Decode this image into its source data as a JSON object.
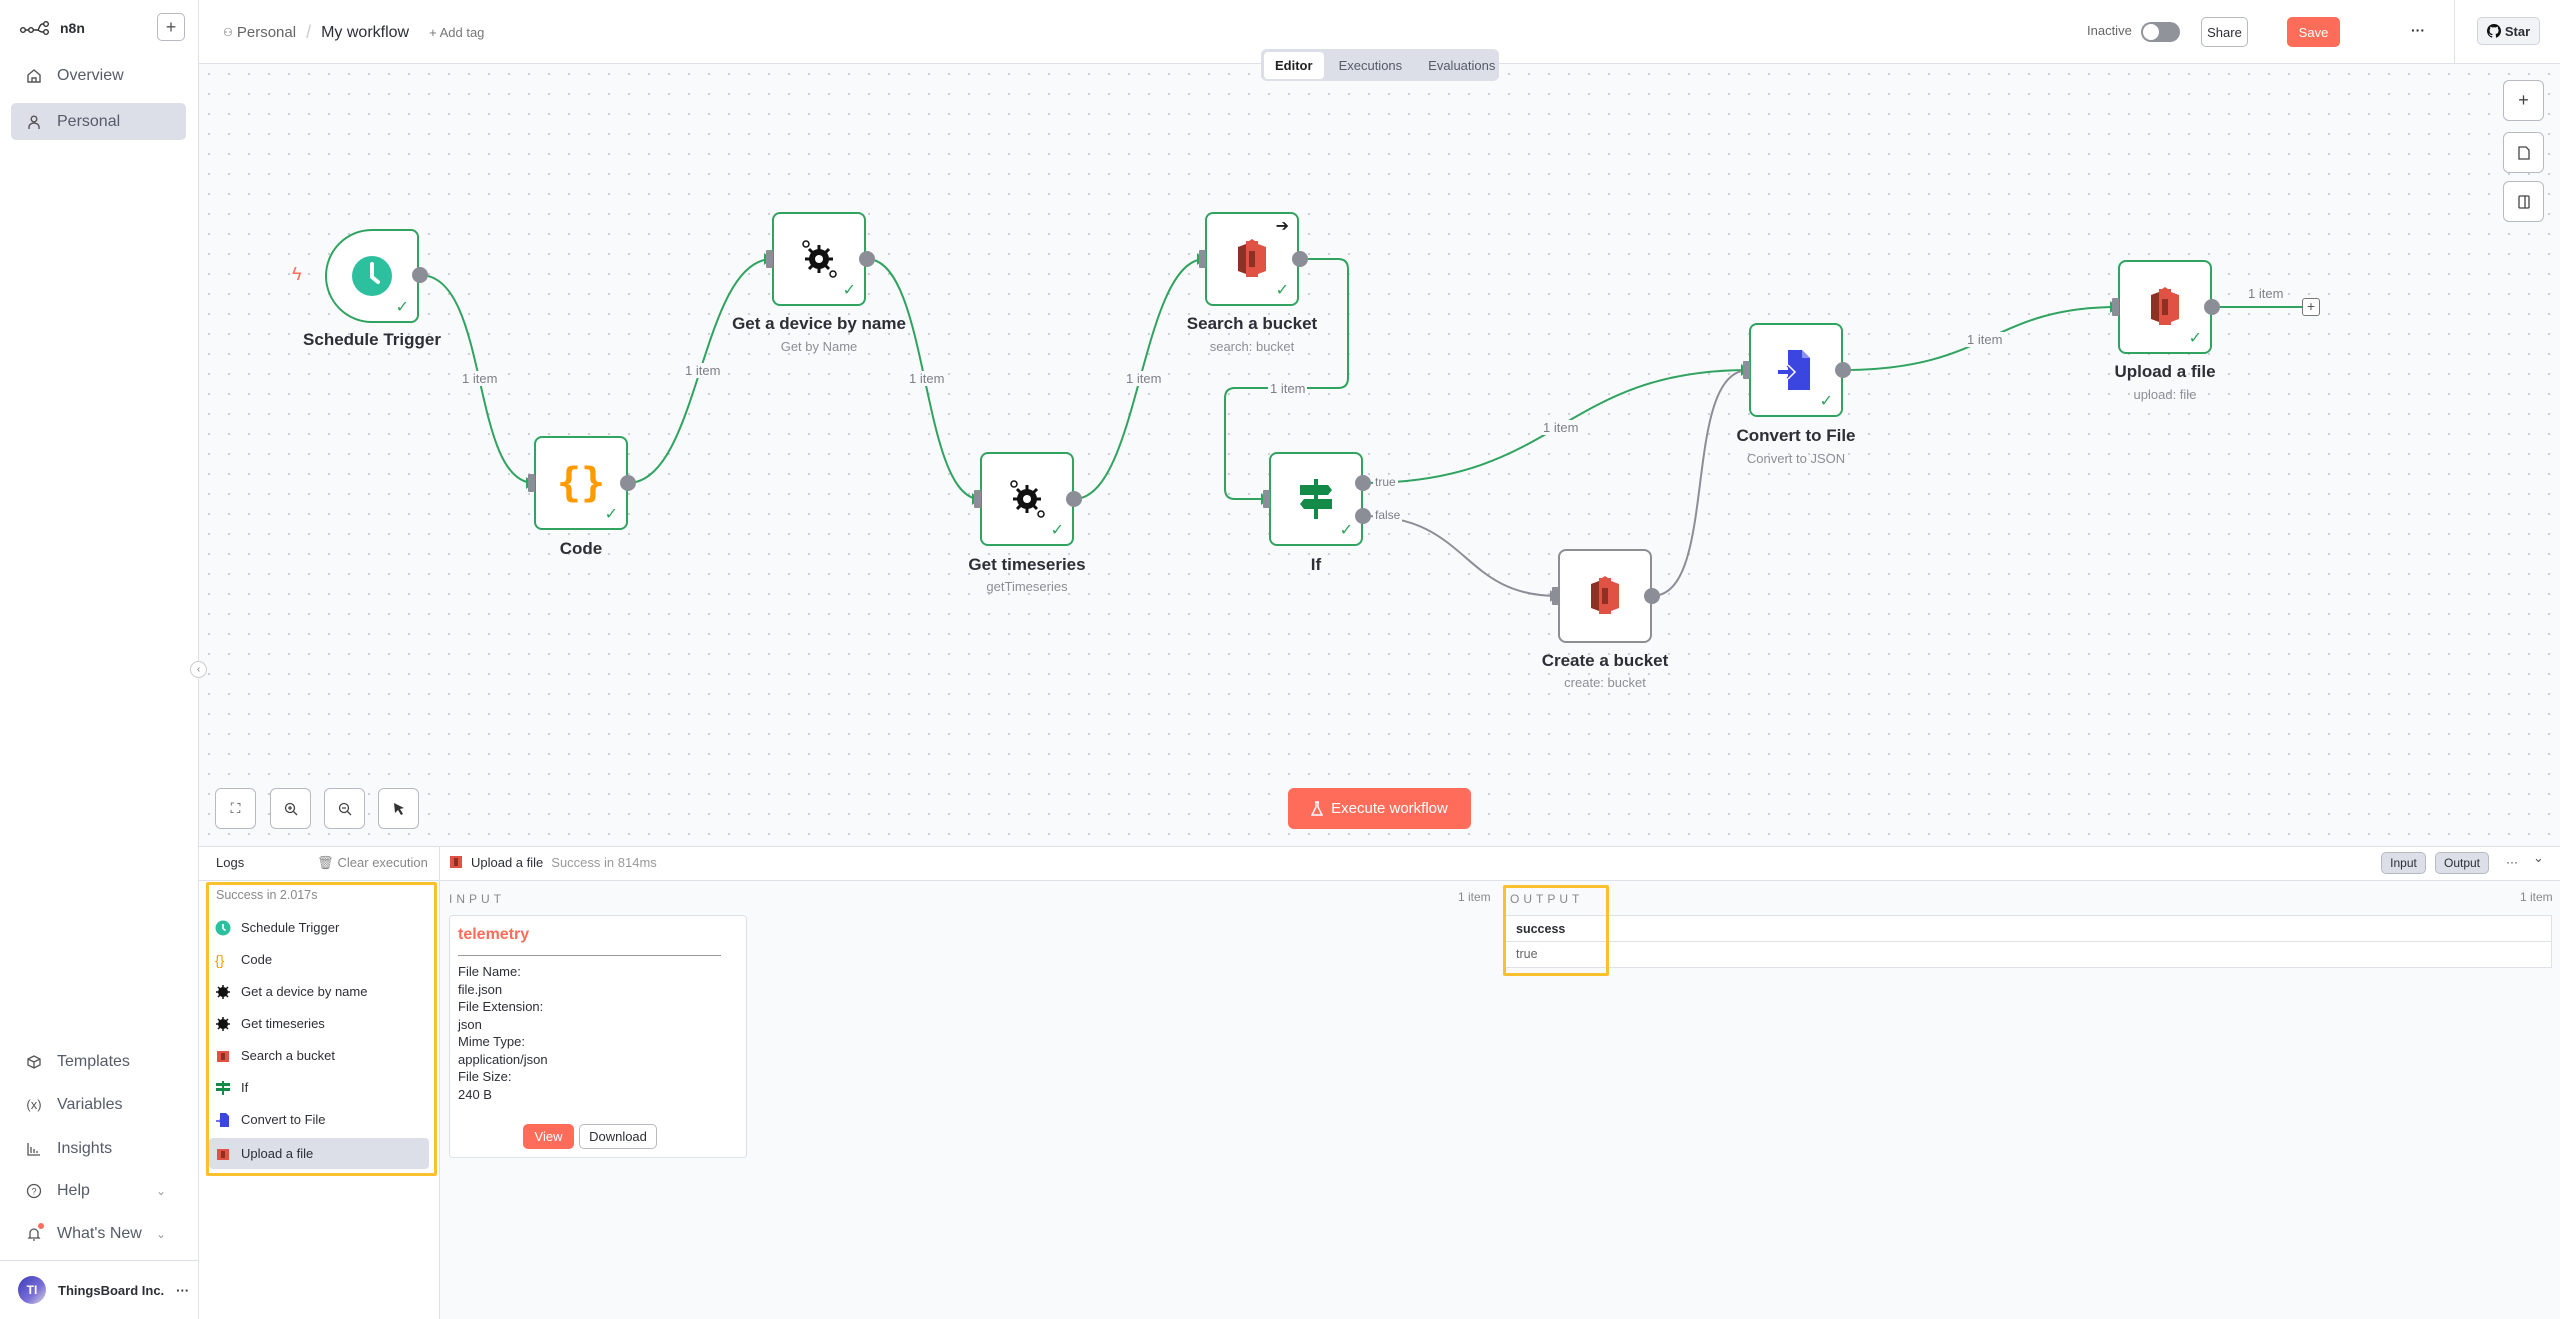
{
  "app": {
    "logo_text": "n8n"
  },
  "sidebar": {
    "items": [
      {
        "label": "Overview",
        "icon": "home-icon"
      },
      {
        "label": "Personal",
        "icon": "user-icon",
        "selected": true
      }
    ],
    "bottom_items": [
      {
        "label": "Templates",
        "icon": "box-icon"
      },
      {
        "label": "Variables",
        "icon": "variable-icon"
      },
      {
        "label": "Insights",
        "icon": "chart-icon"
      },
      {
        "label": "Help",
        "icon": "help-icon"
      },
      {
        "label": "What's New",
        "icon": "bell-icon"
      }
    ],
    "user": {
      "initials": "TI",
      "name": "ThingsBoard Inc.",
      "menu": "···"
    }
  },
  "header": {
    "breadcrumb_project": "Personal",
    "separator": "/",
    "workflow_name": "My workflow",
    "add_tag": "+ Add tag",
    "status_label": "Inactive",
    "share": "Share",
    "save": "Save",
    "more": "···",
    "star": "Star",
    "colors": {
      "save": "#ff6d5a",
      "success": "#2fa35f"
    }
  },
  "tabs": [
    "Editor",
    "Executions",
    "Evaluations"
  ],
  "canvas": {
    "nodes": [
      {
        "name": "Schedule Trigger",
        "subtitle": ""
      },
      {
        "name": "Code",
        "subtitle": ""
      },
      {
        "name": "Get a device by name",
        "subtitle": "Get by Name"
      },
      {
        "name": "Get timeseries",
        "subtitle": "getTimeseries"
      },
      {
        "name": "Search a bucket",
        "subtitle": "search: bucket"
      },
      {
        "name": "If",
        "subtitle": ""
      },
      {
        "name": "Create a bucket",
        "subtitle": "create: bucket"
      },
      {
        "name": "Convert to File",
        "subtitle": "Convert to JSON"
      },
      {
        "name": "Upload a file",
        "subtitle": "upload: file"
      }
    ],
    "edge_label": "1 item",
    "if_true": "true",
    "if_false": "false",
    "execute": "Execute workflow"
  },
  "logs": {
    "title": "Logs",
    "clear": "Clear execution",
    "summary": "Success in 2.017s",
    "items": [
      "Schedule Trigger",
      "Code",
      "Get a device by name",
      "Get timeseries",
      "Search a bucket",
      "If",
      "Convert to File",
      "Upload a file"
    ],
    "selected_node": "Upload a file",
    "selected_status": "Success in 814ms",
    "input_btn": "Input",
    "output_btn": "Output",
    "more": "···",
    "collapse": "⌄"
  },
  "input": {
    "heading": "INPUT",
    "count": "1 item",
    "binary_name": "telemetry",
    "fields": [
      {
        "key": "File Name:",
        "value": "file.json"
      },
      {
        "key": "File Extension:",
        "value": "json"
      },
      {
        "key": "Mime Type:",
        "value": "application/json"
      },
      {
        "key": "File Size:",
        "value": "240 B"
      }
    ],
    "view": "View",
    "download": "Download"
  },
  "output": {
    "heading": "OUTPUT",
    "count": "1 item",
    "column": "success",
    "value": "true"
  }
}
